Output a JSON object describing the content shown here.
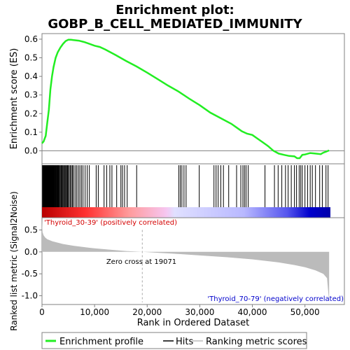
{
  "title_line1": "Enrichment plot:",
  "title_line2": "GOBP_B_CELL_MEDIATED_IMMUNITY",
  "colors": {
    "es_line": "#22ee22",
    "hits": "#000000",
    "metric_fill": "#bbbbbb",
    "axis": "#808080",
    "positive": "#d40000",
    "negative": "#0000cc"
  },
  "chart_data": [
    {
      "name": "es-panel",
      "type": "line",
      "ylabel": "Enrichment score (ES)",
      "ylim": [
        -0.07,
        0.63
      ],
      "yticks": [
        "0.0",
        "0.1",
        "0.2",
        "0.3",
        "0.4",
        "0.5",
        "0.6"
      ],
      "series": [
        {
          "name": "Enrichment profile",
          "x": [
            0,
            300,
            700,
            1000,
            1300,
            1600,
            1900,
            2200,
            2600,
            3000,
            3500,
            4000,
            4500,
            5000,
            5500,
            6000,
            7000,
            8000,
            9000,
            10000,
            11000,
            12000,
            14000,
            16000,
            18000,
            20000,
            22000,
            24000,
            26000,
            28000,
            30000,
            32000,
            34000,
            36000,
            37000,
            38000,
            39000,
            40000,
            41000,
            42000,
            43000,
            44000,
            45000,
            46000,
            47000,
            48000,
            48500,
            49000,
            49500,
            50000,
            51000,
            52000,
            53000,
            53500,
            54000,
            54600
          ],
          "y": [
            0.04,
            0.05,
            0.08,
            0.15,
            0.22,
            0.33,
            0.4,
            0.45,
            0.5,
            0.53,
            0.555,
            0.575,
            0.59,
            0.597,
            0.597,
            0.595,
            0.592,
            0.585,
            0.575,
            0.565,
            0.558,
            0.545,
            0.515,
            0.483,
            0.453,
            0.42,
            0.385,
            0.35,
            0.318,
            0.28,
            0.245,
            0.205,
            0.175,
            0.145,
            0.125,
            0.105,
            0.092,
            0.085,
            0.065,
            0.045,
            0.025,
            0.0,
            -0.015,
            -0.022,
            -0.028,
            -0.03,
            -0.04,
            -0.04,
            -0.022,
            -0.02,
            -0.012,
            -0.015,
            -0.018,
            -0.01,
            -0.005,
            0.002
          ]
        }
      ]
    },
    {
      "name": "hits-panel",
      "type": "scatter",
      "hits_x": [
        100,
        200,
        280,
        350,
        420,
        500,
        560,
        620,
        700,
        760,
        830,
        900,
        980,
        1050,
        1120,
        1180,
        1250,
        1320,
        1400,
        1470,
        1540,
        1600,
        1680,
        1750,
        1830,
        1900,
        1980,
        2050,
        2130,
        2200,
        2280,
        2360,
        2450,
        2550,
        2650,
        2750,
        2850,
        2950,
        3050,
        3150,
        3250,
        3350,
        3500,
        3650,
        3800,
        3950,
        4100,
        4250,
        4400,
        4550,
        4700,
        4850,
        5000,
        5200,
        5400,
        5600,
        5800,
        6000,
        6300,
        6600,
        6900,
        7200,
        7500,
        7800,
        8200,
        8600,
        9000,
        10300,
        10700,
        11800,
        12300,
        12900,
        13300,
        14200,
        15000,
        15300,
        15700,
        16200,
        18000,
        26000,
        26300,
        26600,
        27000,
        27400,
        29900,
        32700,
        33100,
        33500,
        34000,
        34500,
        35500,
        37000,
        37800,
        38200,
        38500,
        38800,
        39200,
        42400,
        44200,
        44900,
        45600,
        46300,
        46800,
        47400,
        48000,
        48400,
        48900,
        49200,
        49500,
        50000,
        50500,
        51000,
        51400,
        52000,
        52800,
        53300,
        54000,
        54400
      ]
    },
    {
      "name": "metric-panel",
      "type": "area",
      "xlabel": "Rank in Ordered Dataset",
      "ylabel": "Ranked list metric (Signal2Noise)",
      "xlim": [
        0,
        57500
      ],
      "ylim": [
        -1.2,
        0.78
      ],
      "yticks": [
        "0.5",
        "0.0",
        "-0.5",
        "-1.0"
      ],
      "xticks": [
        "0",
        "10,000",
        "20,000",
        "30,000",
        "40,000",
        "50,000"
      ],
      "x": [
        0,
        100,
        300,
        600,
        1000,
        2000,
        4000,
        6000,
        8000,
        10000,
        13000,
        16000,
        19071,
        22000,
        25000,
        30000,
        35000,
        40000,
        45000,
        48000,
        50000,
        52000,
        53500,
        54200,
        54600
      ],
      "y": [
        0.72,
        0.45,
        0.38,
        0.33,
        0.29,
        0.24,
        0.18,
        0.14,
        0.11,
        0.08,
        0.05,
        0.02,
        0.0,
        -0.02,
        -0.04,
        -0.08,
        -0.12,
        -0.17,
        -0.24,
        -0.3,
        -0.35,
        -0.42,
        -0.5,
        -0.6,
        -1.15
      ],
      "zero_cross": 19071,
      "zero_label": "Zero cross at 19071",
      "pos_label": "'Thyroid_30-39' (positively correlated)",
      "neg_label": "'Thyroid_70-79' (negatively correlated)"
    }
  ],
  "legend": {
    "enrichment": "Enrichment profile",
    "hits": "Hits",
    "ranking": "Ranking metric scores"
  }
}
